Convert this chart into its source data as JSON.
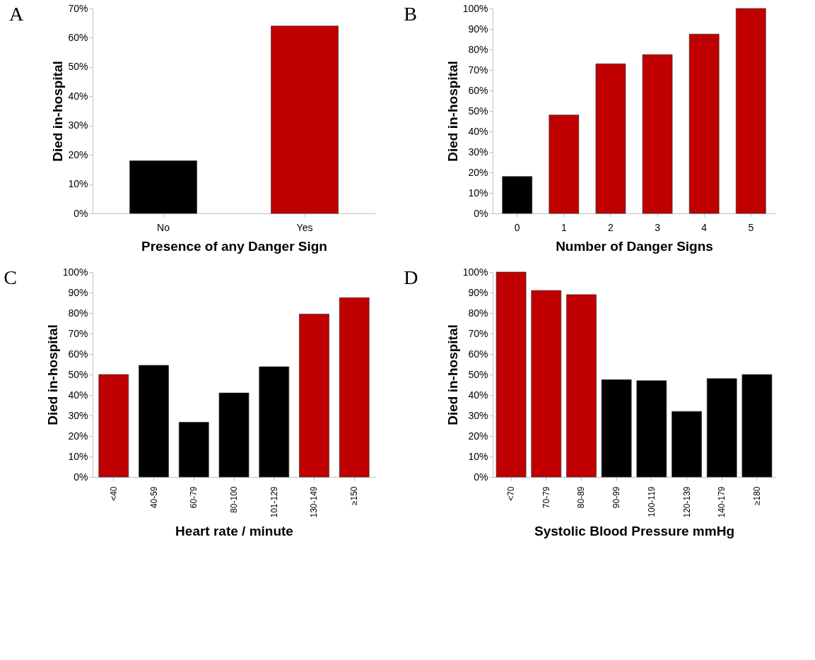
{
  "chart_data": [
    {
      "type": "bar",
      "title": "A",
      "xlabel": "Presence of any Danger Sign",
      "ylabel": "Died in-hospital",
      "categories": [
        "No",
        "Yes"
      ],
      "values": [
        18,
        64
      ],
      "colors": [
        "#000000",
        "#c00000"
      ],
      "ylim": [
        0,
        70
      ],
      "yticks": [
        {
          "value": 0,
          "label": "0%"
        },
        {
          "value": 10,
          "label": "10%"
        },
        {
          "value": 20,
          "label": "20%"
        },
        {
          "value": 30,
          "label": "30%"
        },
        {
          "value": 40,
          "label": "40%"
        },
        {
          "value": 50,
          "label": "50%"
        },
        {
          "value": 60,
          "label": "60%"
        },
        {
          "value": 70,
          "label": "70%"
        }
      ],
      "grid": false
    },
    {
      "type": "bar",
      "title": "B",
      "xlabel": "Number of Danger Signs",
      "ylabel": "Died in-hospital",
      "categories": [
        "0",
        "1",
        "2",
        "3",
        "4",
        "5"
      ],
      "values": [
        18,
        48,
        73,
        77.5,
        87.5,
        100
      ],
      "colors": [
        "#000000",
        "#c00000",
        "#c00000",
        "#c00000",
        "#c00000",
        "#c00000"
      ],
      "ylim": [
        0,
        100
      ],
      "yticks": [
        {
          "value": 0,
          "label": "0%"
        },
        {
          "value": 10,
          "label": "10%"
        },
        {
          "value": 20,
          "label": "20%"
        },
        {
          "value": 30,
          "label": "30%"
        },
        {
          "value": 40,
          "label": "40%"
        },
        {
          "value": 50,
          "label": "50%"
        },
        {
          "value": 60,
          "label": "60%"
        },
        {
          "value": 70,
          "label": "70%"
        },
        {
          "value": 80,
          "label": "80%"
        },
        {
          "value": 90,
          "label": "90%"
        },
        {
          "value": 100,
          "label": "100%"
        }
      ],
      "grid": false
    },
    {
      "type": "bar",
      "title": "C",
      "xlabel": "Heart rate / minute",
      "ylabel": "Died in-hospital",
      "categories": [
        "<40",
        "40-59",
        "60-79",
        "80-100",
        "101-129",
        "130-149",
        "≥150"
      ],
      "values": [
        50,
        54.5,
        26.7,
        41,
        53.8,
        79.5,
        87.5
      ],
      "colors": [
        "#c00000",
        "#000000",
        "#000000",
        "#000000",
        "#000000",
        "#c00000",
        "#c00000"
      ],
      "ylim": [
        0,
        100
      ],
      "yticks": [
        {
          "value": 0,
          "label": "0%"
        },
        {
          "value": 10,
          "label": "10%"
        },
        {
          "value": 20,
          "label": "20%"
        },
        {
          "value": 30,
          "label": "30%"
        },
        {
          "value": 40,
          "label": "40%"
        },
        {
          "value": 50,
          "label": "50%"
        },
        {
          "value": 60,
          "label": "60%"
        },
        {
          "value": 70,
          "label": "70%"
        },
        {
          "value": 80,
          "label": "80%"
        },
        {
          "value": 90,
          "label": "90%"
        },
        {
          "value": 100,
          "label": "100%"
        }
      ],
      "grid": false
    },
    {
      "type": "bar",
      "title": "D",
      "xlabel": "Systolic Blood Pressure mmHg",
      "ylabel": "Died in-hospital",
      "categories": [
        "<70",
        "70-79",
        "80-89",
        "90-99",
        "100-119",
        "120-139",
        "140-179",
        "≥180"
      ],
      "values": [
        100,
        91,
        89,
        47.5,
        47,
        32,
        48,
        50
      ],
      "colors": [
        "#c00000",
        "#c00000",
        "#c00000",
        "#000000",
        "#000000",
        "#000000",
        "#000000",
        "#000000"
      ],
      "ylim": [
        0,
        100
      ],
      "yticks": [
        {
          "value": 0,
          "label": "0%"
        },
        {
          "value": 10,
          "label": "10%"
        },
        {
          "value": 20,
          "label": "20%"
        },
        {
          "value": 30,
          "label": "30%"
        },
        {
          "value": 40,
          "label": "40%"
        },
        {
          "value": 50,
          "label": "50%"
        },
        {
          "value": 60,
          "label": "60%"
        },
        {
          "value": 70,
          "label": "70%"
        },
        {
          "value": 80,
          "label": "80%"
        },
        {
          "value": 90,
          "label": "90%"
        },
        {
          "value": 100,
          "label": "100%"
        }
      ],
      "grid": false
    }
  ]
}
